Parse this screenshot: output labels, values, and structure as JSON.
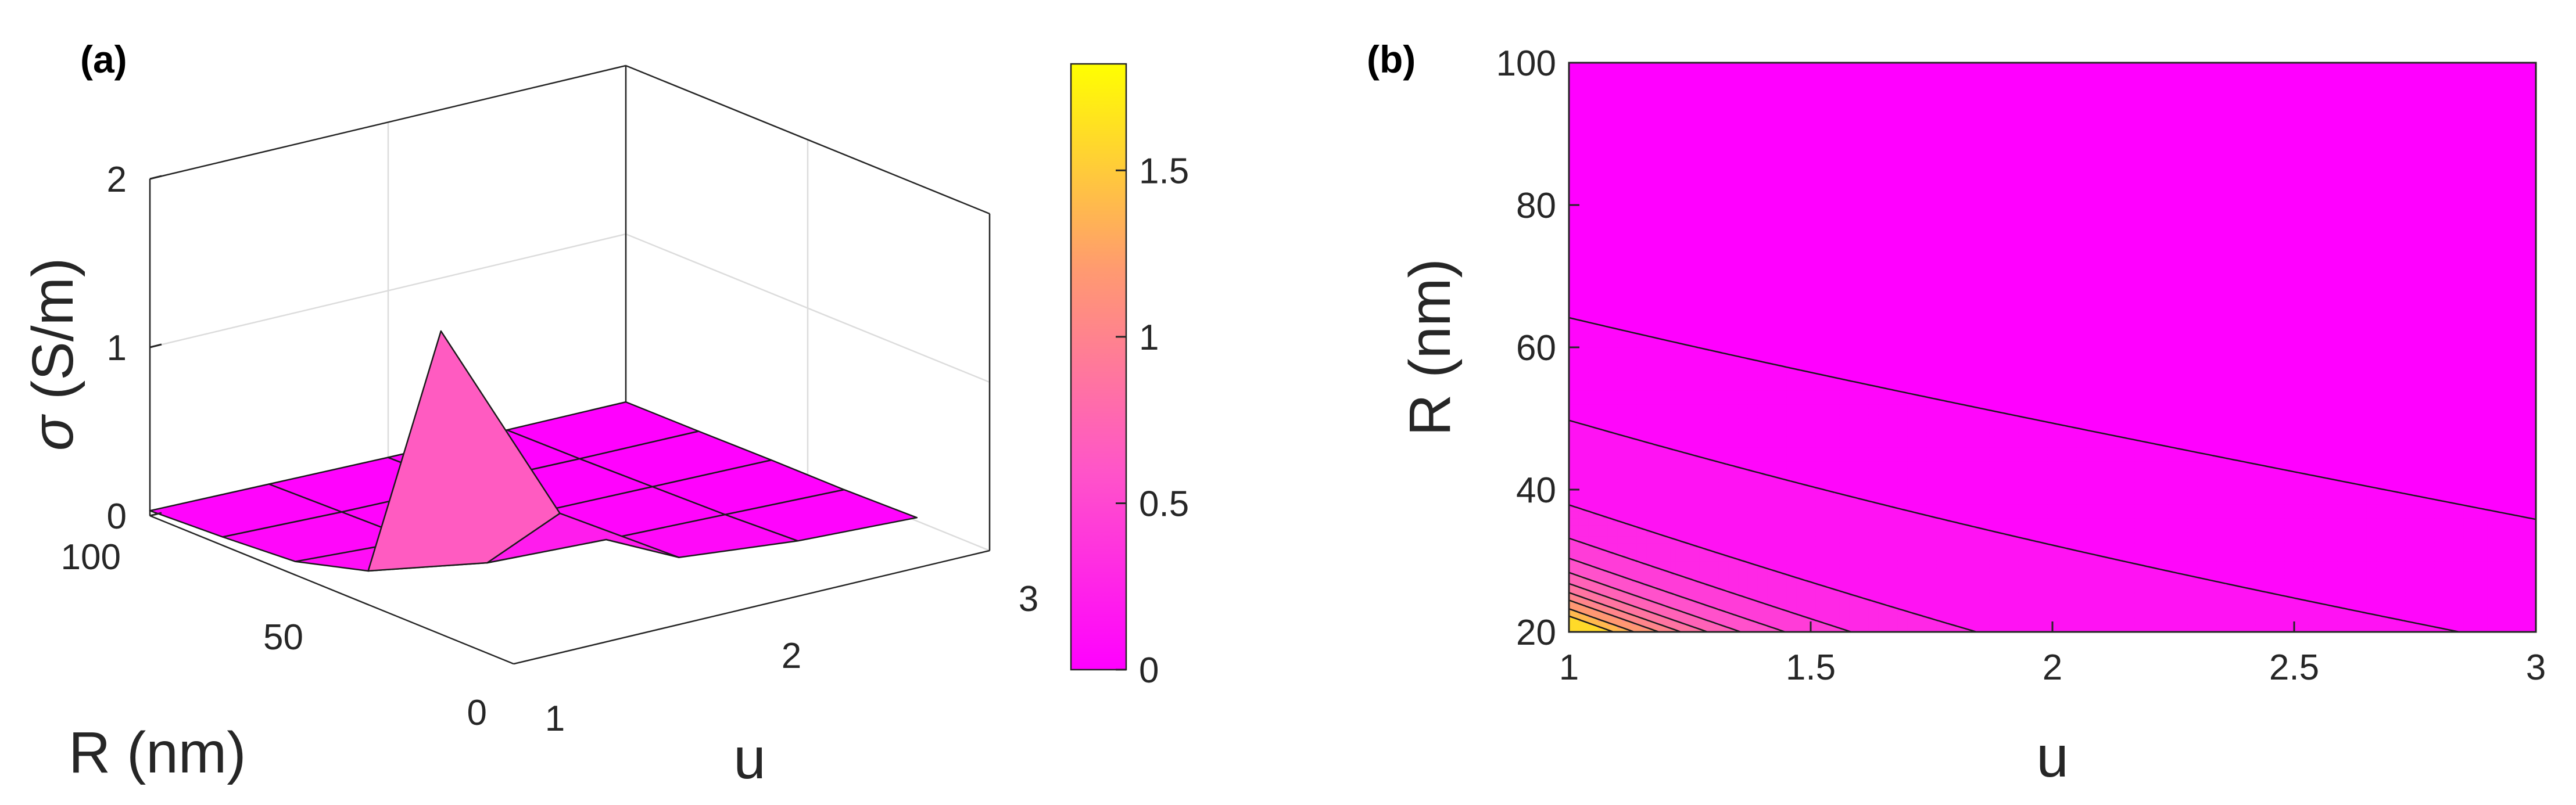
{
  "panel_a_label": "(a)",
  "panel_b_label": "(b)",
  "colormap": {
    "stops": [
      "#ff00ff",
      "#ff55c8",
      "#ff9a70",
      "#ffff00"
    ]
  },
  "chart_data": [
    {
      "id": "a",
      "type": "surface3d",
      "title": "",
      "xlabel": "u",
      "ylabel": "R (nm)",
      "zlabel": "σ (S/m)",
      "zlabel_symbol": "σ",
      "zlabel_rest": "(S/m)",
      "xlim": [
        1,
        3
      ],
      "ylim": [
        0,
        100
      ],
      "zlim": [
        0,
        2
      ],
      "xticks": [
        "1",
        "2",
        "3"
      ],
      "yticks": [
        "0",
        "50",
        "100"
      ],
      "zticks": [
        "0",
        "1",
        "2"
      ],
      "x": [
        1,
        1.5,
        2,
        2.5,
        3
      ],
      "y": [
        20,
        40,
        60,
        80,
        100
      ],
      "z": [
        [
          1.8,
          0.55,
          0.12,
          0.05,
          0.02
        ],
        [
          0.2,
          0.08,
          0.05,
          0.03,
          0.01
        ],
        [
          0.08,
          0.04,
          0.03,
          0.02,
          0.01
        ],
        [
          0.05,
          0.03,
          0.02,
          0.01,
          0.005
        ],
        [
          0.03,
          0.02,
          0.01,
          0.005,
          0.003
        ]
      ]
    },
    {
      "id": "colorbar",
      "type": "colorbar",
      "range": [
        0,
        1.82
      ],
      "ticks": [
        "0",
        "0.5",
        "1",
        "1.5"
      ]
    },
    {
      "id": "b",
      "type": "contour",
      "title": "",
      "xlabel": "u",
      "ylabel": "R (nm)",
      "xlim": [
        1,
        3
      ],
      "ylim": [
        20,
        100
      ],
      "xticks": [
        "1",
        "1.5",
        "2",
        "2.5",
        "3"
      ],
      "yticks": [
        "20",
        "40",
        "60",
        "80",
        "100"
      ],
      "levels": [
        0.02,
        0.06,
        0.2,
        0.35,
        0.5,
        0.65,
        0.8,
        0.95,
        1.1,
        1.3,
        1.5
      ]
    }
  ]
}
